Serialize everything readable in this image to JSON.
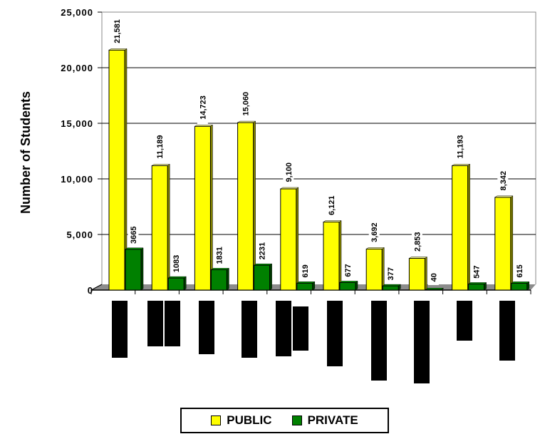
{
  "chart_data": {
    "type": "bar",
    "ylabel": "Number of Students",
    "ylim": [
      0,
      25000
    ],
    "y_ticks": [
      "0",
      "5,000",
      "10,000",
      "15,000",
      "20,000",
      "25,000"
    ],
    "y_tick_values": [
      0,
      5000,
      10000,
      15000,
      20000,
      25000
    ],
    "grid": true,
    "legend_position": "bottom",
    "categories": [
      "",
      "",
      "",
      "",
      "",
      "",
      "",
      "",
      "",
      ""
    ],
    "series": [
      {
        "name": "PUBLIC",
        "color": "#ffff00",
        "values": [
          21581,
          11189,
          14723,
          15060,
          9100,
          6121,
          3692,
          2853,
          11193,
          8342
        ],
        "labels": [
          "21,581",
          "11,189",
          "14,723",
          "15,060",
          "9,100",
          "6,121",
          "3,692",
          "2,853",
          "11,193",
          "8,342"
        ]
      },
      {
        "name": "PRIVATE",
        "color": "#008000",
        "values": [
          3665,
          1083,
          1831,
          2231,
          619,
          677,
          377,
          40,
          547,
          615
        ],
        "labels": [
          "3665",
          "1083",
          "1831",
          "2231",
          "619",
          "677",
          "377",
          "40",
          "547",
          "615"
        ]
      }
    ]
  },
  "legend": {
    "public_label": "PUBLIC",
    "private_label": "PRIVATE",
    "public_color": "#ffff00",
    "private_color": "#008000"
  }
}
